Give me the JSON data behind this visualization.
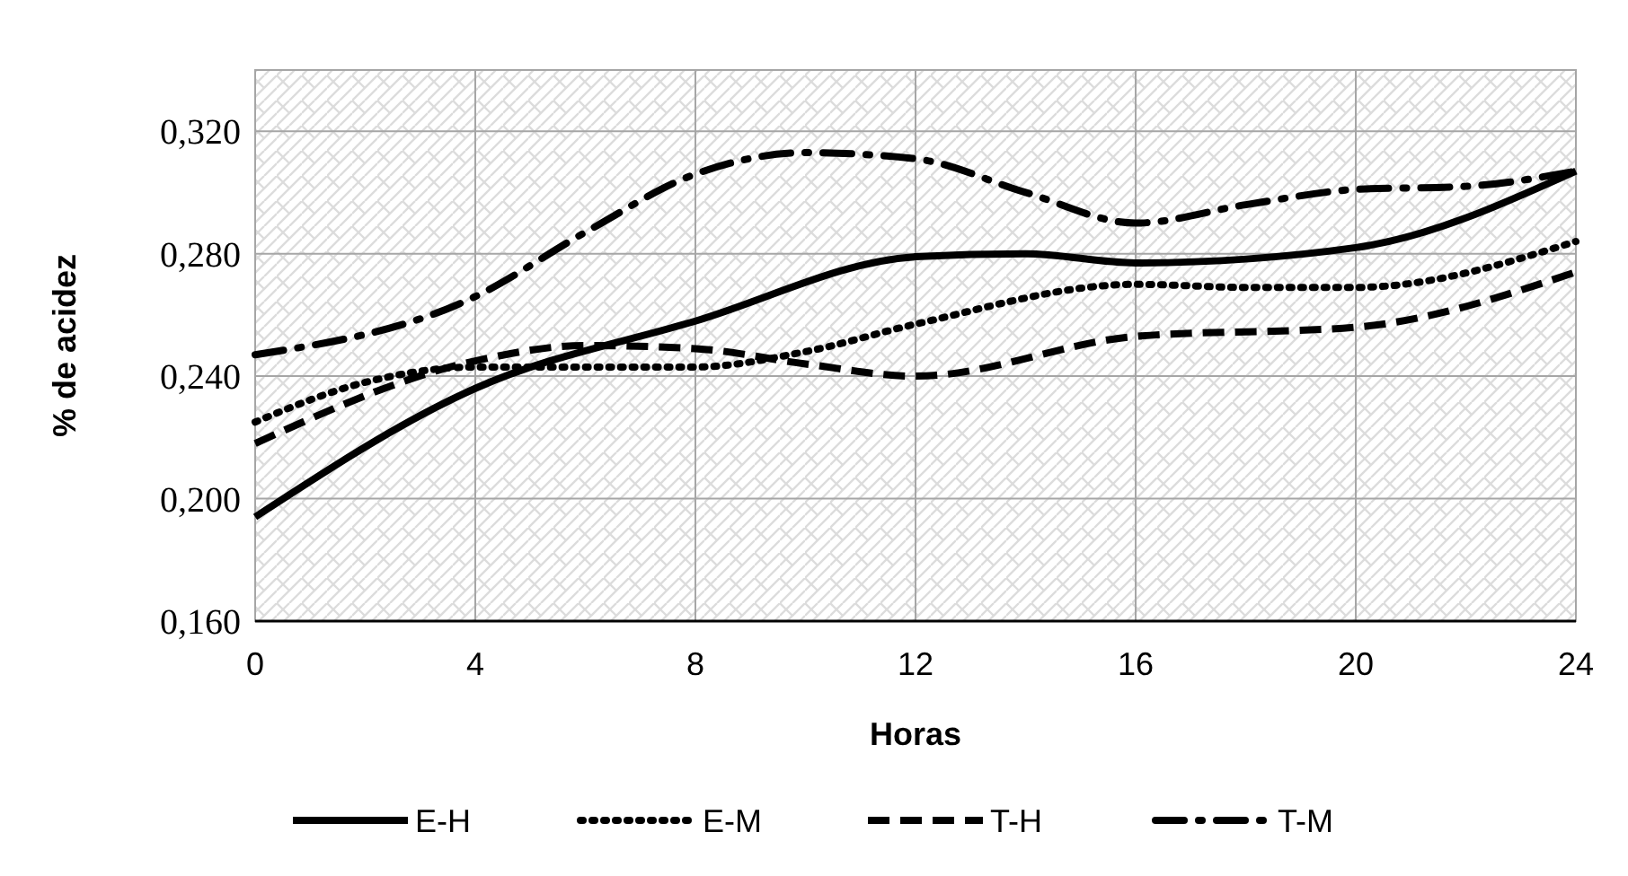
{
  "chart_data": {
    "type": "line",
    "xlabel": "Horas",
    "ylabel": "% de acidez",
    "xlim": [
      0,
      24
    ],
    "xticks": [
      0,
      4,
      8,
      12,
      16,
      20,
      24
    ],
    "ylim": [
      0.16,
      0.34
    ],
    "yticks": [
      {
        "value": 0.16,
        "label": "0,160"
      },
      {
        "value": 0.2,
        "label": "0,200"
      },
      {
        "value": 0.24,
        "label": "0,240"
      },
      {
        "value": 0.28,
        "label": "0,280"
      },
      {
        "value": 0.32,
        "label": "0,320"
      }
    ],
    "grid": true,
    "legend": "bottom",
    "series": [
      {
        "name": "E-H",
        "color": "#000000",
        "line_style": "solid",
        "x": [
          0,
          4,
          8,
          12,
          14,
          16,
          20,
          24
        ],
        "values": [
          0.194,
          0.236,
          0.258,
          0.279,
          0.28,
          0.277,
          0.282,
          0.307
        ]
      },
      {
        "name": "E-M",
        "color": "#000000",
        "line_style": "dotted",
        "x": [
          0,
          2,
          4,
          8,
          10,
          12,
          16,
          18,
          20,
          24
        ],
        "values": [
          0.225,
          0.238,
          0.243,
          0.243,
          0.248,
          0.257,
          0.27,
          0.269,
          0.269,
          0.284
        ]
      },
      {
        "name": "T-H",
        "color": "#000000",
        "line_style": "dashed",
        "x": [
          0,
          4,
          6,
          8,
          10,
          12,
          16,
          20,
          24
        ],
        "values": [
          0.218,
          0.245,
          0.25,
          0.249,
          0.244,
          0.24,
          0.253,
          0.256,
          0.274
        ]
      },
      {
        "name": "T-M",
        "color": "#000000",
        "line_style": "dashdot",
        "x": [
          0,
          4,
          6,
          8,
          10,
          12,
          14,
          16,
          18,
          20,
          22,
          24
        ],
        "values": [
          0.247,
          0.266,
          0.287,
          0.306,
          0.313,
          0.311,
          0.3,
          0.29,
          0.296,
          0.301,
          0.302,
          0.307
        ]
      }
    ]
  }
}
